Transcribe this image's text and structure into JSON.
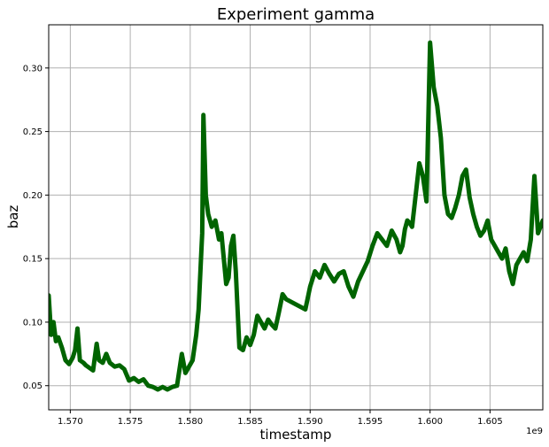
{
  "chart_data": {
    "type": "line",
    "title": "Experiment gamma",
    "xlabel": "timestamp",
    "ylabel": "baz",
    "x_offset_label": "1e9",
    "xlim": [
      1.5682,
      1.6094
    ],
    "ylim": [
      0.031,
      0.334
    ],
    "x_ticks": [
      1.57,
      1.575,
      1.58,
      1.585,
      1.59,
      1.595,
      1.6,
      1.605
    ],
    "x_tick_labels": [
      "1.570",
      "1.575",
      "1.580",
      "1.585",
      "1.590",
      "1.595",
      "1.600",
      "1.605"
    ],
    "y_ticks": [
      0.05,
      0.1,
      0.15,
      0.2,
      0.25,
      0.3
    ],
    "y_tick_labels": [
      "0.05",
      "0.10",
      "0.15",
      "0.20",
      "0.25",
      "0.30"
    ],
    "grid": true,
    "line_color": "#006400",
    "series": [
      {
        "name": "",
        "x": [
          1.5682,
          1.5684,
          1.5686,
          1.5688,
          1.569,
          1.5693,
          1.5696,
          1.5699,
          1.5702,
          1.5704,
          1.5706,
          1.5708,
          1.5711,
          1.5713,
          1.5716,
          1.5719,
          1.5722,
          1.5724,
          1.5727,
          1.573,
          1.5733,
          1.5737,
          1.5741,
          1.5745,
          1.5749,
          1.5753,
          1.5757,
          1.5761,
          1.5765,
          1.5769,
          1.5773,
          1.5777,
          1.5781,
          1.5785,
          1.5789,
          1.5793,
          1.5796,
          1.5799,
          1.5802,
          1.5805,
          1.5807,
          1.5808,
          1.5809,
          1.581,
          1.5811,
          1.5813,
          1.5815,
          1.5818,
          1.5821,
          1.5824,
          1.5826,
          1.5828,
          1.583,
          1.5832,
          1.5834,
          1.5836,
          1.5838,
          1.5841,
          1.5844,
          1.5847,
          1.585,
          1.5853,
          1.5856,
          1.5859,
          1.5862,
          1.5865,
          1.5868,
          1.5871,
          1.5874,
          1.5877,
          1.588,
          1.5884,
          1.5888,
          1.5892,
          1.5896,
          1.59,
          1.5904,
          1.5908,
          1.5912,
          1.5916,
          1.592,
          1.5924,
          1.5928,
          1.5932,
          1.5936,
          1.594,
          1.5944,
          1.5948,
          1.5952,
          1.5956,
          1.596,
          1.5964,
          1.5968,
          1.5972,
          1.5975,
          1.5977,
          1.5979,
          1.5981,
          1.5983,
          1.5985,
          1.5988,
          1.5991,
          1.5994,
          1.5997,
          1.6,
          1.6003,
          1.6006,
          1.6009,
          1.6012,
          1.6015,
          1.6018,
          1.6021,
          1.6024,
          1.6027,
          1.603,
          1.6033,
          1.6036,
          1.6039,
          1.6042,
          1.6045,
          1.6048,
          1.6051,
          1.6054,
          1.6057,
          1.606,
          1.6063,
          1.6066,
          1.6069,
          1.6072,
          1.6075,
          1.6078,
          1.6081,
          1.6084,
          1.6087,
          1.609,
          1.6094
        ],
        "values": [
          0.121,
          0.09,
          0.1,
          0.085,
          0.088,
          0.08,
          0.07,
          0.067,
          0.072,
          0.078,
          0.095,
          0.07,
          0.068,
          0.066,
          0.064,
          0.062,
          0.083,
          0.07,
          0.068,
          0.075,
          0.068,
          0.065,
          0.066,
          0.063,
          0.054,
          0.056,
          0.053,
          0.055,
          0.05,
          0.049,
          0.047,
          0.049,
          0.047,
          0.049,
          0.05,
          0.075,
          0.06,
          0.065,
          0.07,
          0.09,
          0.11,
          0.13,
          0.15,
          0.17,
          0.263,
          0.2,
          0.185,
          0.175,
          0.18,
          0.165,
          0.17,
          0.15,
          0.13,
          0.135,
          0.16,
          0.168,
          0.14,
          0.08,
          0.078,
          0.088,
          0.082,
          0.09,
          0.105,
          0.1,
          0.095,
          0.102,
          0.098,
          0.095,
          0.108,
          0.122,
          0.118,
          0.116,
          0.114,
          0.112,
          0.11,
          0.128,
          0.14,
          0.135,
          0.145,
          0.138,
          0.132,
          0.138,
          0.14,
          0.128,
          0.12,
          0.132,
          0.14,
          0.148,
          0.16,
          0.17,
          0.165,
          0.16,
          0.172,
          0.165,
          0.155,
          0.16,
          0.173,
          0.18,
          0.178,
          0.175,
          0.2,
          0.225,
          0.215,
          0.195,
          0.32,
          0.285,
          0.27,
          0.245,
          0.2,
          0.185,
          0.182,
          0.19,
          0.2,
          0.215,
          0.22,
          0.198,
          0.185,
          0.175,
          0.168,
          0.172,
          0.18,
          0.165,
          0.16,
          0.155,
          0.15,
          0.158,
          0.14,
          0.13,
          0.145,
          0.15,
          0.155,
          0.148,
          0.165,
          0.215,
          0.17,
          0.18
        ]
      }
    ]
  }
}
